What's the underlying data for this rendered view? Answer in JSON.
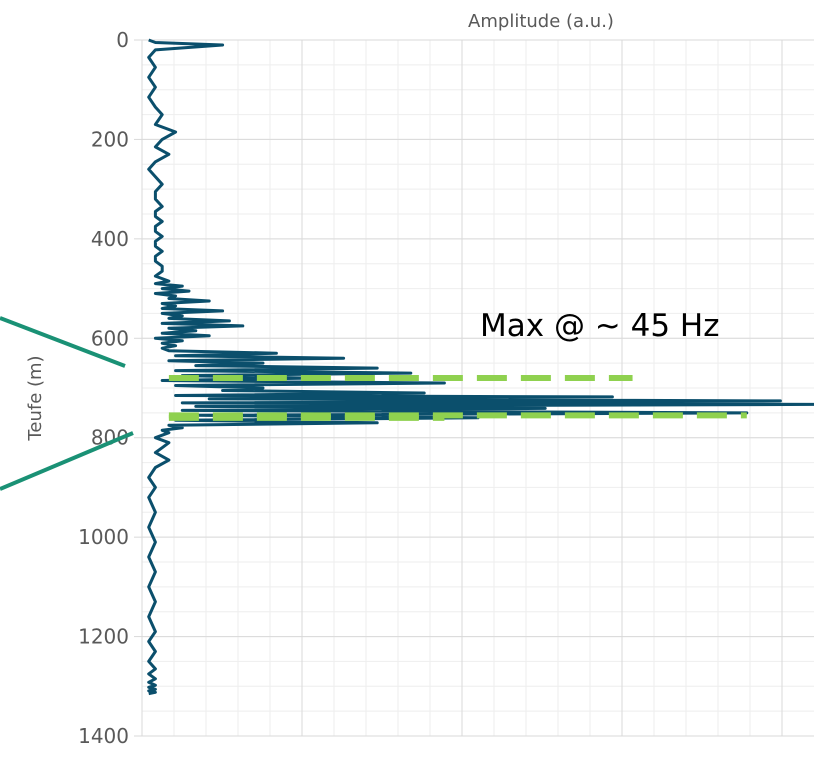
{
  "chart_data": {
    "type": "line",
    "title": "",
    "xlabel": "Amplitude (a.u.)",
    "ylabel": "Teufe (m)",
    "xlim": [
      0,
      1
    ],
    "ylim": [
      0,
      1400
    ],
    "y_inverted": true,
    "x_axis_position": "top",
    "yticks": [
      "0",
      "200",
      "400",
      "600",
      "800",
      "1000",
      "1200",
      "1400"
    ],
    "grid": true,
    "annotation": "Max @ ~ 45 Hz",
    "series": [
      {
        "x": [
          0.01,
          0.02,
          0.12,
          0.02,
          0.01,
          0.02,
          0.01,
          0.02,
          0.01,
          0.02,
          0.03,
          0.02,
          0.05,
          0.03,
          0.02,
          0.04,
          0.02,
          0.01,
          0.02,
          0.03,
          0.02,
          0.02,
          0.03,
          0.02,
          0.02,
          0.03,
          0.02,
          0.02,
          0.03,
          0.02,
          0.02,
          0.03,
          0.02,
          0.02,
          0.03,
          0.03,
          0.02,
          0.04,
          0.02,
          0.06,
          0.03,
          0.07,
          0.02,
          0.05,
          0.04,
          0.1,
          0.03,
          0.05,
          0.03,
          0.12,
          0.03,
          0.06,
          0.04,
          0.13,
          0.03,
          0.15,
          0.04,
          0.08,
          0.03,
          0.1,
          0.02,
          0.06,
          0.03,
          0.05,
          0.03,
          0.04,
          0.2,
          0.05,
          0.3,
          0.04,
          0.18,
          0.08,
          0.35,
          0.05,
          0.4,
          0.06,
          0.25,
          0.03,
          0.45,
          0.05,
          0.18,
          0.12,
          0.42,
          0.05,
          0.7,
          0.1,
          0.95,
          0.06,
          1.0,
          0.08,
          0.6,
          0.06,
          0.9,
          0.08,
          0.5,
          0.05,
          0.35,
          0.04,
          0.06,
          0.03,
          0.04,
          0.02,
          0.04,
          0.03,
          0.02,
          0.04,
          0.02,
          0.01,
          0.02,
          0.01,
          0.02,
          0.01,
          0.02,
          0.01,
          0.02,
          0.01,
          0.02,
          0.01,
          0.02,
          0.01,
          0.02,
          0.01,
          0.02,
          0.01,
          0.02,
          0.01,
          0.02,
          0.01,
          0.02,
          0.01,
          0.02,
          0.01
        ],
        "y": [
          0,
          5,
          10,
          20,
          35,
          55,
          75,
          95,
          115,
          135,
          150,
          170,
          185,
          200,
          215,
          230,
          245,
          260,
          275,
          290,
          305,
          320,
          335,
          345,
          355,
          365,
          375,
          385,
          395,
          405,
          415,
          425,
          435,
          445,
          455,
          465,
          475,
          485,
          490,
          495,
          500,
          505,
          510,
          515,
          520,
          525,
          530,
          535,
          540,
          545,
          550,
          555,
          560,
          565,
          570,
          575,
          580,
          585,
          590,
          595,
          600,
          605,
          610,
          615,
          620,
          625,
          630,
          635,
          640,
          645,
          650,
          655,
          660,
          665,
          670,
          675,
          680,
          685,
          690,
          695,
          700,
          705,
          710,
          715,
          718,
          722,
          726,
          730,
          733,
          737,
          741,
          745,
          750,
          755,
          760,
          765,
          770,
          775,
          780,
          785,
          790,
          800,
          810,
          820,
          830,
          845,
          860,
          880,
          900,
          920,
          950,
          980,
          1010,
          1040,
          1070,
          1100,
          1130,
          1160,
          1190,
          1210,
          1230,
          1250,
          1265,
          1275,
          1285,
          1292,
          1298,
          1302,
          1306,
          1309,
          1312,
          1315
        ]
      }
    ],
    "reference_lines": [
      {
        "depth": 680,
        "x_start": 0.04,
        "x_end": 0.73
      },
      {
        "depth": 755,
        "x_start": 0.04,
        "x_end": 0.9
      },
      {
        "depth": 760,
        "x_start": 0.04,
        "x_end": 0.45
      }
    ],
    "colors": {
      "series": "#0b4f6c",
      "reference": "#8fd14f",
      "annotation_lines": "#1a9175",
      "grid_major": "#d9d9d9",
      "grid_minor": "#eeeeee",
      "text": "#595959"
    }
  }
}
